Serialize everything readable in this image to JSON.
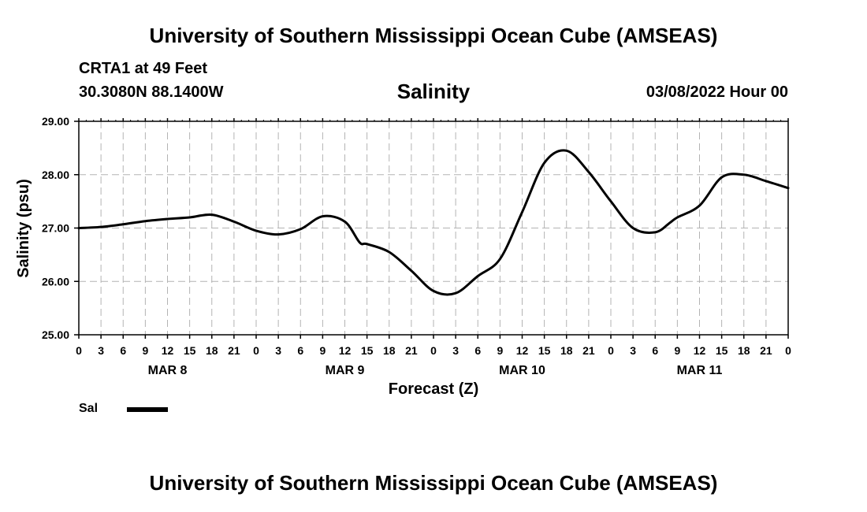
{
  "header": {
    "title": "University of Southern Mississippi Ocean Cube (AMSEAS)",
    "station": "CRTA1 at 49 Feet",
    "coords": "30.3080N  88.1400W",
    "parameter": "Salinity",
    "run_date": "03/08/2022 Hour 00"
  },
  "footer": {
    "title": "University of Southern Mississippi Ocean Cube (AMSEAS)"
  },
  "legend": {
    "label": "Sal",
    "color": "#000000"
  },
  "chart_data": {
    "type": "line",
    "title": "Salinity",
    "xlabel": "Forecast (Z)",
    "ylabel": "Salinity (psu)",
    "ylim": [
      25.0,
      29.0
    ],
    "xlim": [
      0,
      96
    ],
    "yticks": [
      "25.00",
      "26.00",
      "27.00",
      "28.00",
      "29.00"
    ],
    "xtick_labels": [
      "0",
      "3",
      "6",
      "9",
      "12",
      "15",
      "18",
      "21",
      "0",
      "3",
      "6",
      "9",
      "12",
      "15",
      "18",
      "21",
      "0",
      "3",
      "6",
      "9",
      "12",
      "15",
      "18",
      "21",
      "0",
      "3",
      "6",
      "9",
      "12",
      "15",
      "18",
      "21",
      "0"
    ],
    "day_labels": [
      {
        "label": "MAR 8",
        "hour": 12
      },
      {
        "label": "MAR 9",
        "hour": 36
      },
      {
        "label": "MAR 10",
        "hour": 60
      },
      {
        "label": "MAR 11",
        "hour": 84
      }
    ],
    "grid": true,
    "series": [
      {
        "name": "Sal",
        "x": [
          0,
          3,
          6,
          9,
          12,
          15,
          18,
          21,
          24,
          27,
          30,
          33,
          36,
          38,
          39,
          42,
          45,
          48,
          51,
          54,
          57,
          60,
          63,
          66,
          69,
          72,
          75,
          78,
          80,
          81,
          84,
          87,
          90,
          93,
          96
        ],
        "values": [
          27.0,
          27.02,
          27.07,
          27.13,
          27.17,
          27.2,
          27.25,
          27.12,
          26.95,
          26.88,
          26.98,
          27.22,
          27.12,
          26.73,
          26.7,
          26.55,
          26.2,
          25.82,
          25.78,
          26.1,
          26.42,
          27.3,
          28.22,
          28.45,
          28.05,
          27.5,
          27.0,
          26.92,
          27.1,
          27.2,
          27.42,
          27.95,
          28.0,
          27.88,
          27.75
        ]
      }
    ]
  }
}
